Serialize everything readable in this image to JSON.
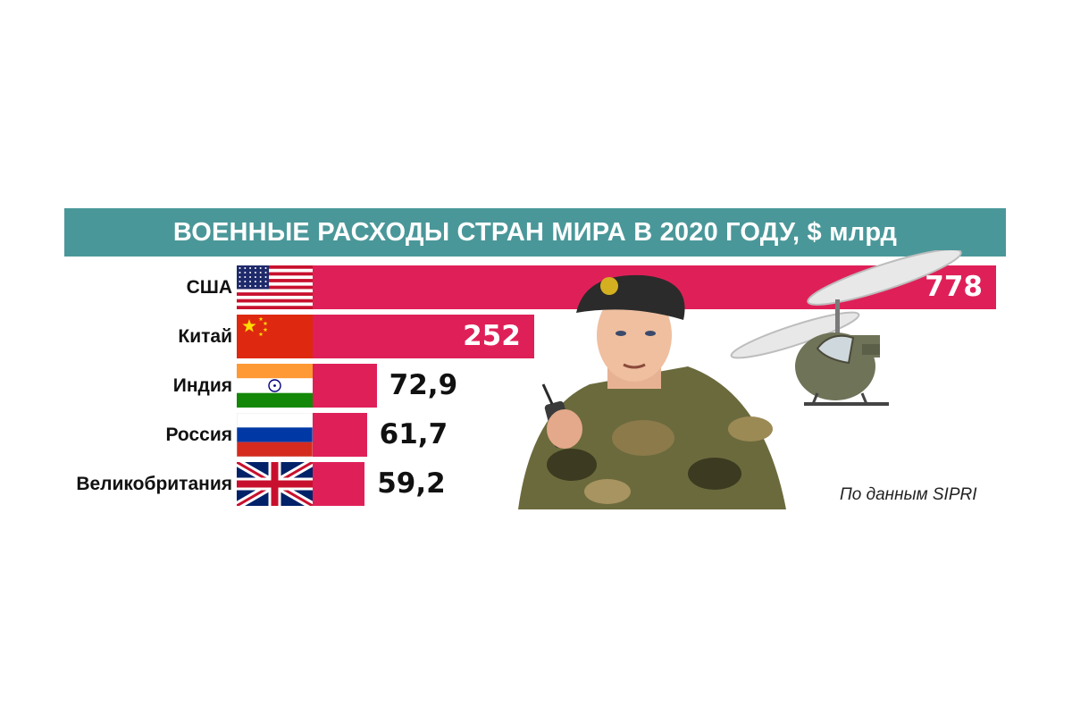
{
  "chart_data": {
    "type": "bar",
    "orientation": "horizontal",
    "title": "ВОЕННЫЕ РАСХОДЫ СТРАН МИРА В 2020 ГОДУ, $ млрд",
    "categories": [
      "США",
      "Китай",
      "Индия",
      "Россия",
      "Великобритания"
    ],
    "values": [
      778,
      252,
      72.9,
      61.7,
      59.2
    ],
    "value_labels": [
      "778",
      "252",
      "72,9",
      "61,7",
      "59,2"
    ],
    "flags": [
      "usa-flag",
      "china-flag",
      "india-flag",
      "russia-flag",
      "uk-flag"
    ],
    "xlim": [
      0,
      778
    ],
    "grid": false,
    "bar_color": "#df2058"
  },
  "source": "По данным  SIPRI",
  "colors": {
    "title_bg": "#4a9799",
    "bar": "#df2058",
    "text": "#111111"
  },
  "illustration": [
    "soldier-with-radio",
    "helicopter"
  ]
}
